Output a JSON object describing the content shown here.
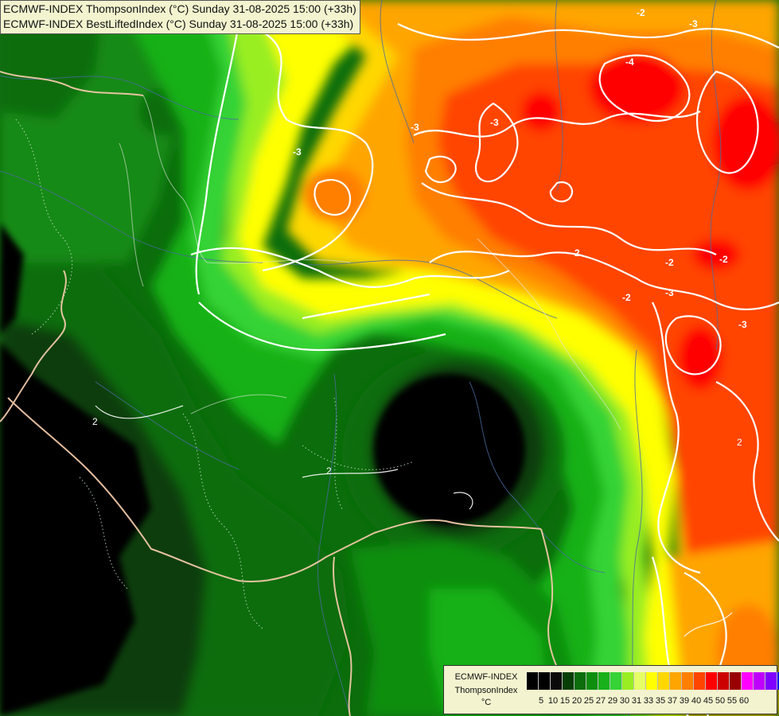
{
  "header": {
    "line1": "ECMWF-INDEX ThompsonIndex (°C) Sunday 31-08-2025 15:00 (+33h)",
    "line2": "ECMWF-INDEX BestLiftedIndex (°C) Sunday 31-08-2025 15:00 (+33h)"
  },
  "legend": {
    "label1": "ECMWF-INDEX",
    "label2": "ThompsonIndex",
    "label3": "°C",
    "ticks": [
      "5",
      "10",
      "15",
      "20",
      "25",
      "27",
      "29",
      "30",
      "31",
      "33",
      "35",
      "37",
      "39",
      "40",
      "45",
      "50",
      "55",
      "60"
    ],
    "colors": [
      "#000000",
      "#000000",
      "#0a0a0a",
      "#073d07",
      "#0b6d0b",
      "#0e8e0e",
      "#19b119",
      "#35d335",
      "#99ee22",
      "#e6ff66",
      "#ffff00",
      "#ffd700",
      "#ffa500",
      "#ff7f00",
      "#ff4500",
      "#ff0000",
      "#cc0000",
      "#990000",
      "#ff00ff",
      "#bf00ff",
      "#8000ff",
      "#0000ff"
    ]
  },
  "map": {
    "contour_labels": [
      "-2",
      "-3",
      "-3",
      "-3",
      "-3",
      "-2",
      "-2",
      "-3",
      "-3",
      "-4",
      "-2",
      "-2",
      "2",
      "2",
      "2"
    ]
  }
}
